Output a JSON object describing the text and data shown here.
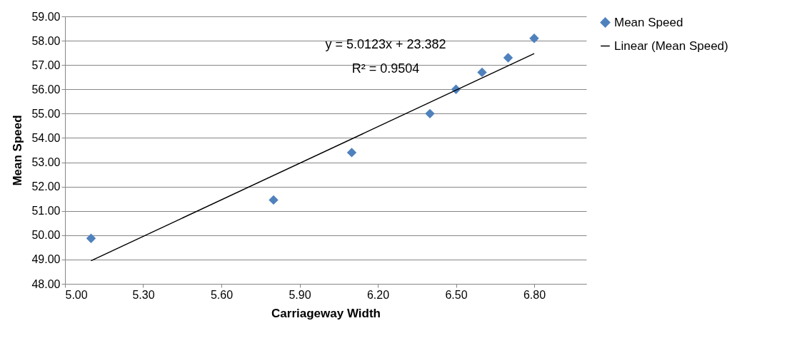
{
  "chart_data": {
    "type": "scatter",
    "xlabel": "Carriageway Width",
    "ylabel": "Mean Speed",
    "x": [
      5.1,
      5.8,
      6.1,
      6.4,
      6.5,
      6.6,
      6.7,
      6.8
    ],
    "series": [
      {
        "name": "Mean Speed",
        "color": "#4f81bd",
        "marker": "diamond",
        "values": [
          49.87,
          51.45,
          53.4,
          55.0,
          56.0,
          56.7,
          57.3,
          58.1
        ]
      },
      {
        "name": "Linear (Mean Speed)",
        "type": "line",
        "color": "#000000",
        "x": [
          5.1,
          6.8
        ],
        "values": [
          48.95,
          57.47
        ]
      }
    ],
    "annotations": [
      "y = 5.0123x + 23.382",
      "R² = 0.9504"
    ],
    "xlim": [
      5.0,
      7.0
    ],
    "xticks": [
      {
        "value": 5.0,
        "label": "5.00"
      },
      {
        "value": 5.3,
        "label": "5.30"
      },
      {
        "value": 5.6,
        "label": "5.60"
      },
      {
        "value": 5.9,
        "label": "5.90"
      },
      {
        "value": 6.2,
        "label": "6.20"
      },
      {
        "value": 6.5,
        "label": "6.50"
      },
      {
        "value": 6.8,
        "label": "6.80"
      }
    ],
    "ylim": [
      48,
      59
    ],
    "yticks": [
      {
        "value": 48,
        "label": "48.00"
      },
      {
        "value": 49,
        "label": "49.00"
      },
      {
        "value": 50,
        "label": "50.00"
      },
      {
        "value": 51,
        "label": "51.00"
      },
      {
        "value": 52,
        "label": "52.00"
      },
      {
        "value": 53,
        "label": "53.00"
      },
      {
        "value": 54,
        "label": "54.00"
      },
      {
        "value": 55,
        "label": "55.00"
      },
      {
        "value": 56,
        "label": "56.00"
      },
      {
        "value": 57,
        "label": "57.00"
      },
      {
        "value": 58,
        "label": "58.00"
      },
      {
        "value": 59,
        "label": "59.00"
      }
    ],
    "grid": "y",
    "legend": "right"
  }
}
